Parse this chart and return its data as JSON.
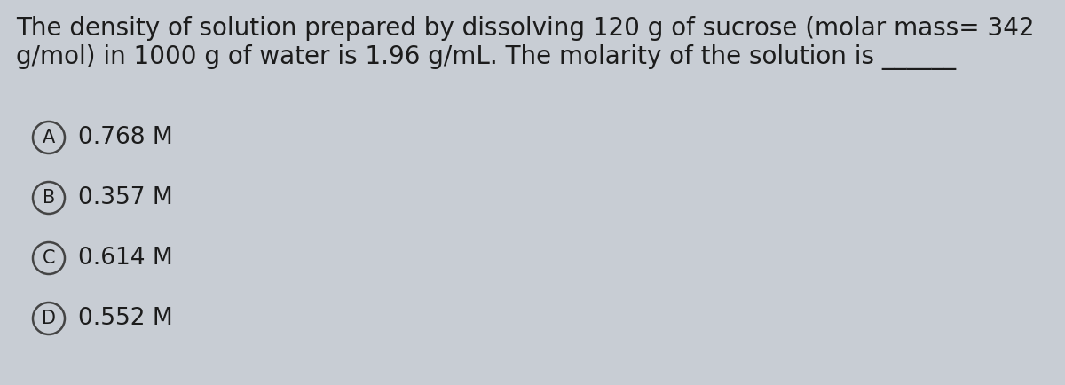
{
  "background_color": "#c8cdd4",
  "question_line1": "The density of solution prepared by dissolving 120 g of sucrose (molar mass= 342",
  "question_line2": "g/mol) in 1000 g of water is 1.96 g/mL. The molarity of the solution is ______",
  "options": [
    {
      "label": "A",
      "text": "0.768 M"
    },
    {
      "label": "B",
      "text": "0.357 M"
    },
    {
      "label": "C",
      "text": "0.614 M"
    },
    {
      "label": "D",
      "text": "0.552 M"
    }
  ],
  "question_fontsize": 20,
  "option_fontsize": 19,
  "label_fontsize": 15,
  "text_color": "#1c1c1c",
  "circle_edge_color": "#444444",
  "circle_face_color": "#c8cdd4",
  "circle_linewidth": 1.8
}
